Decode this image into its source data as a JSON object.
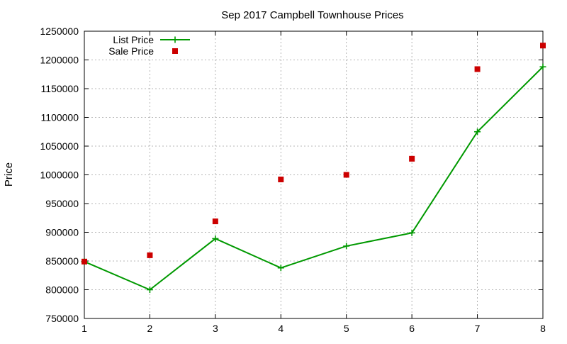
{
  "chart_data": {
    "type": "line",
    "title": "Sep 2017 Campbell Townhouse Prices",
    "xlabel": "",
    "ylabel": "Price",
    "xlim": [
      1,
      8
    ],
    "ylim": [
      750000,
      1250000
    ],
    "xticks": [
      1,
      2,
      3,
      4,
      5,
      6,
      7,
      8
    ],
    "yticks": [
      750000,
      800000,
      850000,
      900000,
      950000,
      1000000,
      1050000,
      1100000,
      1150000,
      1200000,
      1250000
    ],
    "grid": true,
    "legend_position": "top-left",
    "series": [
      {
        "name": "List Price",
        "style": "line-with-plus-markers",
        "color": "#009900",
        "x": [
          1,
          2,
          3,
          4,
          5,
          6,
          7,
          8
        ],
        "y": [
          849000,
          800000,
          889000,
          838000,
          876000,
          899000,
          1075000,
          1188000
        ]
      },
      {
        "name": "Sale Price",
        "style": "square-markers",
        "color": "#cc0000",
        "x": [
          1,
          2,
          3,
          4,
          5,
          6,
          7,
          8
        ],
        "y": [
          849000,
          860000,
          919000,
          992000,
          1000000,
          1028000,
          1184000,
          1225000
        ]
      }
    ]
  }
}
